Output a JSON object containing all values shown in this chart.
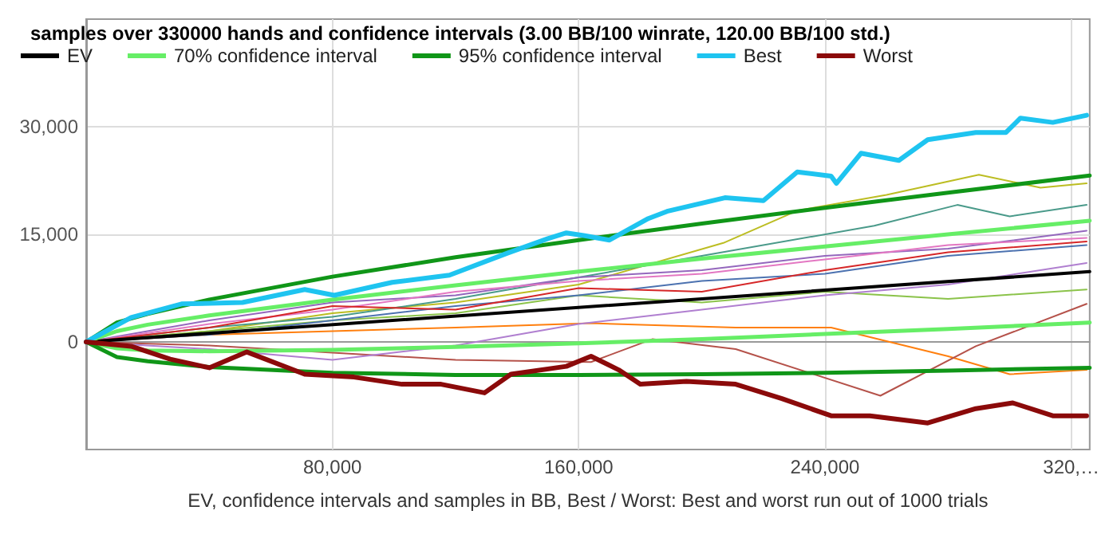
{
  "chart_data": {
    "type": "line",
    "title": "samples over 330000 hands and confidence intervals (3.00 BB/100 winrate, 120.00 BB/100 std.)",
    "xlabel": "EV, confidence intervals and samples in BB, Best / Worst: Best and worst run out of 1000 trials",
    "xlim": [
      0,
      326000
    ],
    "xticks": [
      {
        "value": 80000,
        "label": "80,000"
      },
      {
        "value": 160000,
        "label": "160,000"
      },
      {
        "value": 240000,
        "label": "240,000"
      },
      {
        "value": 320000,
        "label": "320,…"
      }
    ],
    "ylim": [
      -15000,
      45000
    ],
    "yticks": [
      0,
      {
        "value": 15000,
        "label": "15,000"
      },
      {
        "value": 30000,
        "label": "30,000"
      }
    ],
    "grid": true,
    "legend": "top left",
    "marker": "none",
    "line_style": "solid",
    "series": [
      {
        "x": [
          0,
          40000,
          80000,
          120000,
          160000,
          207000,
          231000,
          260000,
          290000,
          310000,
          325000
        ],
        "color": "#bcbd22",
        "values": [
          0,
          1500,
          4000,
          5500,
          8000,
          13800,
          18300,
          20500,
          23300,
          21500,
          22100
        ]
      },
      {
        "x": [
          0,
          40000,
          80000,
          120000,
          160000,
          200000,
          256000,
          283000,
          300000,
          325000
        ],
        "color": "#4a9a8a",
        "values": [
          0,
          2000,
          3500,
          6000,
          9000,
          12000,
          16200,
          19100,
          17500,
          19100
        ]
      },
      {
        "x": [
          0,
          40000,
          80000,
          120000,
          164000,
          211000,
          242000,
          280000,
          300000,
          325000
        ],
        "color": "#ff7f0e",
        "values": [
          0,
          1000,
          1500,
          2000,
          2600,
          2000,
          2000,
          -2000,
          -4500,
          -3900
        ]
      },
      {
        "x": [
          0,
          40000,
          80000,
          120000,
          164000,
          184000,
          211000,
          258000,
          289000,
          325000
        ],
        "color": "#b5524a",
        "values": [
          0,
          -500,
          -1500,
          -2500,
          -2800,
          400,
          -1000,
          -7500,
          -600,
          5300
        ]
      },
      {
        "x": [
          0,
          40000,
          80000,
          120000,
          160000,
          200000,
          240000,
          280000,
          325000
        ],
        "color": "#8bc34a",
        "values": [
          0,
          1500,
          3000,
          4000,
          6500,
          5500,
          7000,
          6000,
          7300
        ]
      },
      {
        "x": [
          0,
          40000,
          80000,
          120000,
          160000,
          200000,
          240000,
          280000,
          325000
        ],
        "color": "#9467bd",
        "values": [
          0,
          3000,
          5500,
          6500,
          9000,
          10000,
          12000,
          13000,
          15500
        ]
      },
      {
        "x": [
          0,
          40000,
          80000,
          120000,
          160000,
          200000,
          240000,
          280000,
          325000
        ],
        "color": "#e377c2",
        "values": [
          0,
          2500,
          4500,
          7000,
          8500,
          9500,
          11500,
          13500,
          14500
        ]
      },
      {
        "x": [
          0,
          40000,
          80000,
          120000,
          160000,
          200000,
          240000,
          280000,
          325000
        ],
        "color": "#4c72b0",
        "values": [
          0,
          1000,
          3000,
          5000,
          6500,
          8500,
          9500,
          12000,
          13500
        ]
      },
      {
        "x": [
          0,
          40000,
          80000,
          120000,
          160000,
          200000,
          240000,
          280000,
          325000
        ],
        "color": "#d62728",
        "values": [
          0,
          2000,
          5000,
          4500,
          7500,
          7000,
          10000,
          12500,
          14000
        ]
      },
      {
        "x": [
          0,
          40000,
          80000,
          120000,
          160000,
          200000,
          240000,
          280000,
          325000
        ],
        "color": "#b07fd0",
        "values": [
          0,
          -1000,
          -2500,
          -500,
          2500,
          4500,
          6500,
          8000,
          11000
        ]
      },
      {
        "name": "EV",
        "color": "#000000",
        "x": [
          0,
          326000
        ],
        "values": [
          0,
          9800
        ]
      },
      {
        "name": "70% confidence interval",
        "color": "#66ee66",
        "x": [
          0,
          10000,
          20000,
          40000,
          80000,
          120000,
          160000,
          200000,
          240000,
          280000,
          326000
        ],
        "values": [
          0,
          1500,
          2400,
          3700,
          5900,
          7900,
          9800,
          11600,
          13300,
          15000,
          16900
        ]
      },
      {
        "color": "#66ee66",
        "x": [
          0,
          10000,
          20000,
          40000,
          80000,
          120000,
          160000,
          200000,
          240000,
          280000,
          326000
        ],
        "values": [
          0,
          -900,
          -1200,
          -1300,
          -1100,
          -700,
          -200,
          400,
          1100,
          1800,
          2700
        ]
      },
      {
        "name": "95% confidence interval",
        "color": "#109618",
        "x": [
          0,
          10000,
          20000,
          40000,
          80000,
          120000,
          160000,
          200000,
          240000,
          280000,
          326000
        ],
        "values": [
          0,
          2700,
          3900,
          5900,
          9100,
          11800,
          14200,
          16500,
          18700,
          20800,
          23200
        ]
      },
      {
        "color": "#109618",
        "x": [
          0,
          10000,
          20000,
          40000,
          80000,
          120000,
          160000,
          200000,
          240000,
          280000,
          326000
        ],
        "values": [
          0,
          -2100,
          -2700,
          -3500,
          -4300,
          -4600,
          -4600,
          -4500,
          -4300,
          -4000,
          -3600
        ]
      },
      {
        "name": "Best",
        "color": "#1ec4f0",
        "x": [
          0,
          14600,
          31000,
          50800,
          71000,
          80600,
          99400,
          118000,
          137000,
          150000,
          156000,
          162000,
          170000,
          182600,
          188700,
          207500,
          220000,
          231000,
          242000,
          243700,
          251700,
          264000,
          273400,
          289000,
          298800,
          303500,
          314000,
          325000
        ],
        "values": [
          0,
          3400,
          5300,
          5500,
          7300,
          6500,
          8300,
          9300,
          12400,
          14400,
          15200,
          14800,
          14200,
          17200,
          18200,
          20100,
          19700,
          23700,
          23100,
          22100,
          26300,
          25300,
          28200,
          29200,
          29200,
          31200,
          30600,
          31600
        ]
      },
      {
        "name": "Worst",
        "color": "#8b0a0a",
        "x": [
          0,
          14600,
          27300,
          40000,
          52200,
          71000,
          87000,
          102600,
          115300,
          129400,
          138000,
          156000,
          164000,
          173000,
          180000,
          195000,
          211000,
          226000,
          242000,
          254600,
          273400,
          289000,
          301000,
          314000,
          325000
        ],
        "values": [
          0,
          -600,
          -2400,
          -3600,
          -1400,
          -4500,
          -4900,
          -5900,
          -5900,
          -7100,
          -4500,
          -3400,
          -2000,
          -3900,
          -5900,
          -5500,
          -5900,
          -7900,
          -10300,
          -10300,
          -11300,
          -9300,
          -8500,
          -10300,
          -10300
        ]
      }
    ]
  }
}
